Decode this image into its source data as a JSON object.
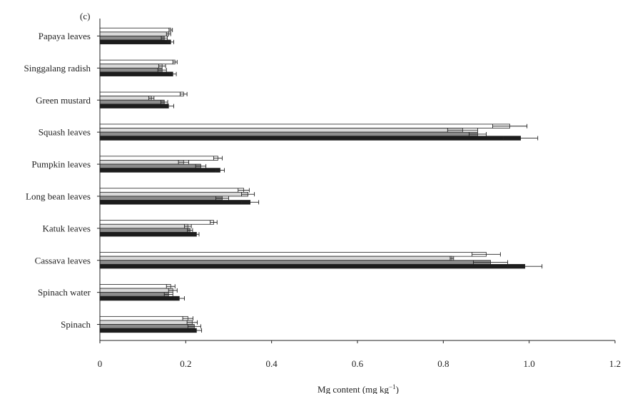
{
  "chart_data": {
    "type": "bar",
    "orientation": "horizontal",
    "panel_label": "(c)",
    "xlabel": "Mg content (mg kg",
    "xlabel_sup": "−1",
    "xlabel_end": ")",
    "ylabel": "",
    "xlim": [
      0,
      1.2
    ],
    "xticks": [
      0,
      0.2,
      0.4,
      0.6,
      0.8,
      1.0,
      1.2
    ],
    "xtick_labels": [
      "0",
      "0.2",
      "0.4",
      "0.6",
      "0.8",
      "1.0",
      "1.2"
    ],
    "grid": false,
    "legend": "none",
    "categories": [
      "Papaya leaves",
      "Singgalang radish",
      "Green mustard",
      "Squash leaves",
      "Pumpkin leaves",
      "Long bean leaves",
      "Katuk leaves",
      "Cassava leaves",
      "Spinach water",
      "Spinach"
    ],
    "series": [
      {
        "color": "#ffffff",
        "values": [
          0.165,
          0.175,
          0.195,
          0.955,
          0.275,
          0.335,
          0.265,
          0.9,
          0.165,
          0.205
        ],
        "errors": [
          0.004,
          0.005,
          0.008,
          0.04,
          0.01,
          0.013,
          0.008,
          0.033,
          0.01,
          0.012
        ]
      },
      {
        "color": "#d9d9d9",
        "values": [
          0.16,
          0.145,
          0.12,
          0.845,
          0.195,
          0.345,
          0.205,
          0.82,
          0.17,
          0.215
        ],
        "errors": [
          0.005,
          0.008,
          0.006,
          0.035,
          0.012,
          0.015,
          0.008,
          0.004,
          0.01,
          0.012
        ]
      },
      {
        "color": "#8c8c8c",
        "values": [
          0.15,
          0.145,
          0.15,
          0.88,
          0.235,
          0.285,
          0.21,
          0.91,
          0.16,
          0.22
        ],
        "errors": [
          0.007,
          0.01,
          0.008,
          0.02,
          0.012,
          0.015,
          0.006,
          0.04,
          0.01,
          0.015
        ]
      },
      {
        "color": "#1c1c1c",
        "values": [
          0.165,
          0.17,
          0.16,
          0.98,
          0.28,
          0.35,
          0.225,
          0.99,
          0.185,
          0.225
        ],
        "errors": [
          0.007,
          0.008,
          0.012,
          0.04,
          0.01,
          0.02,
          0.006,
          0.04,
          0.012,
          0.012
        ]
      }
    ]
  }
}
